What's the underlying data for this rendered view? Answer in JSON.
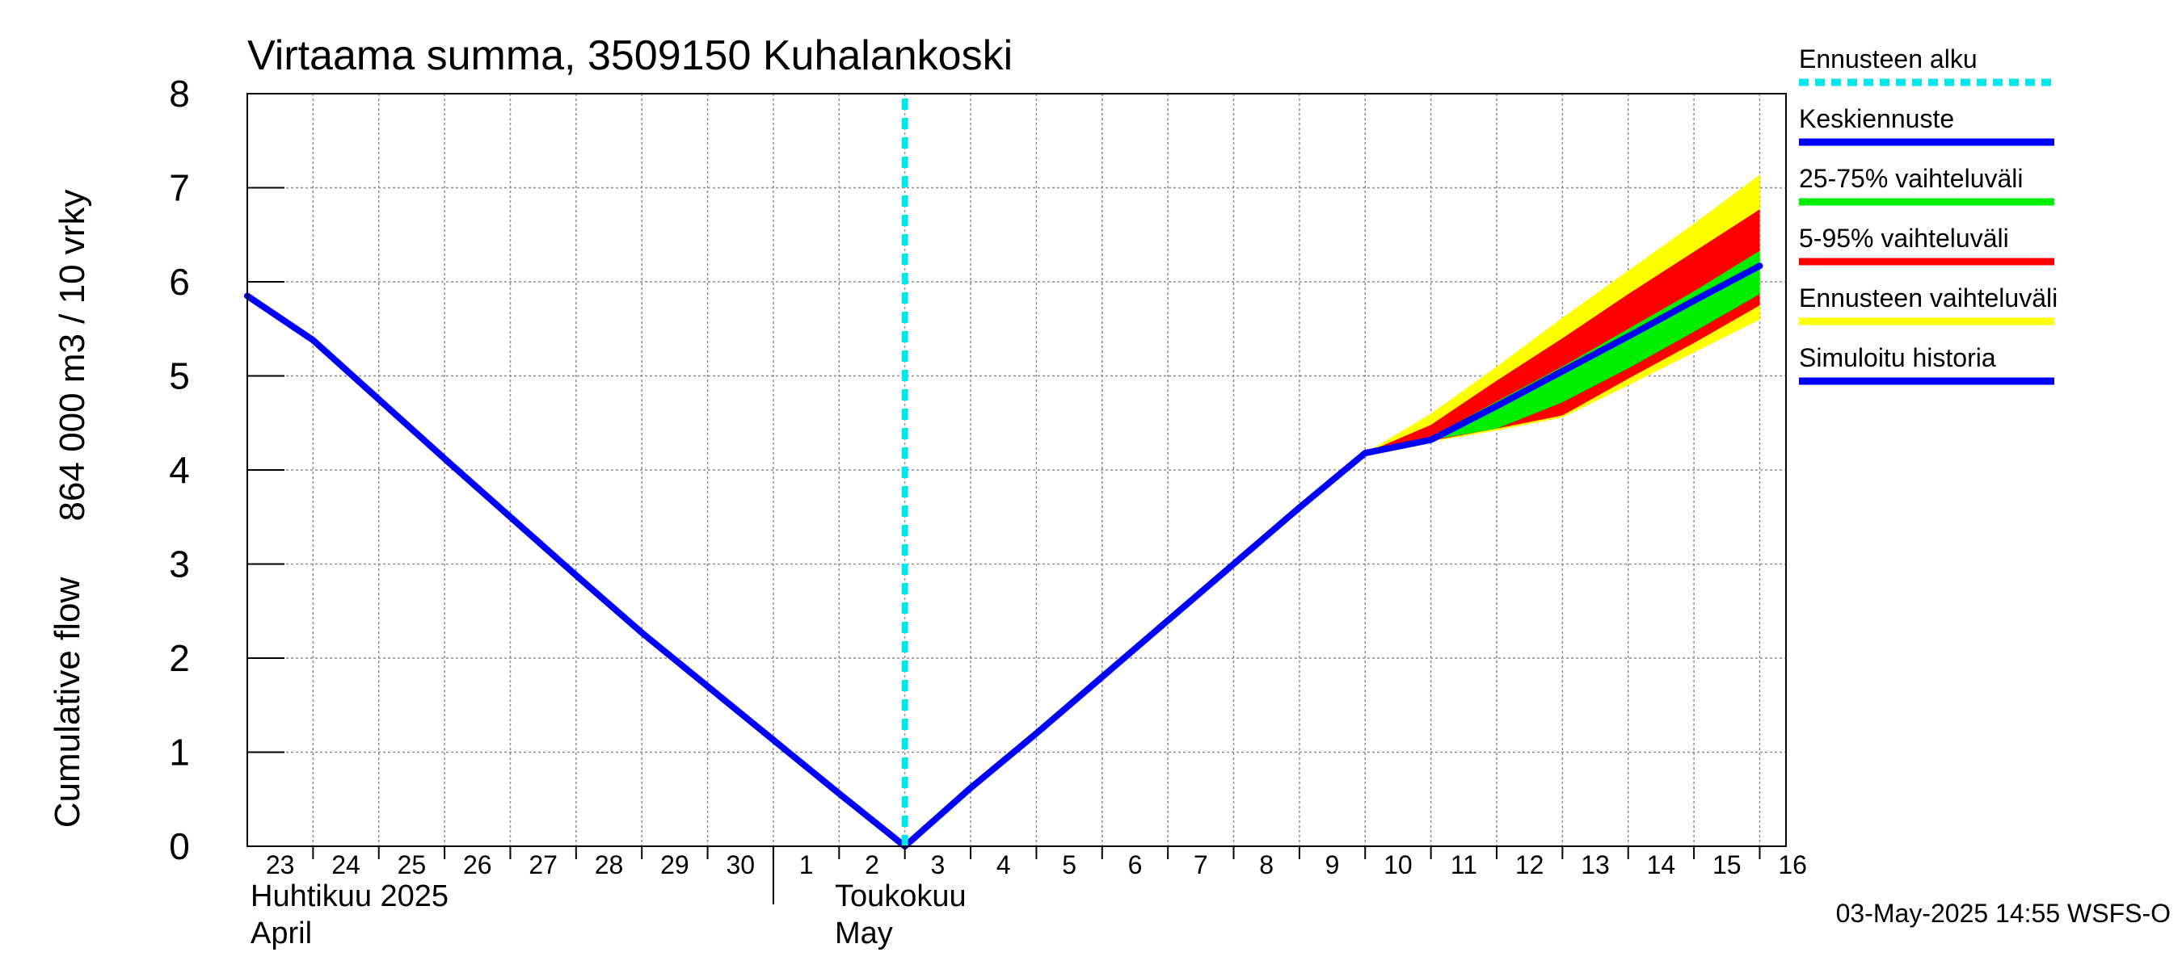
{
  "chart_data": {
    "type": "area",
    "title": "Virtaama summa, 3509150 Kuhalankoski",
    "ylabel_top": "864 000 m3 / 10 vrky",
    "ylabel_bottom": "Cumulative flow",
    "ylim": [
      0,
      8
    ],
    "yticks": [
      "0",
      "1",
      "2",
      "3",
      "4",
      "5",
      "6",
      "7",
      "8"
    ],
    "grid": true,
    "x_start": "2025-04-23",
    "x_end": "2025-05-16",
    "xticks": [
      "23",
      "24",
      "25",
      "26",
      "27",
      "28",
      "29",
      "30",
      "1",
      "2",
      "3",
      "4",
      "5",
      "6",
      "7",
      "8",
      "9",
      "10",
      "11",
      "12",
      "13",
      "14",
      "15",
      "16"
    ],
    "month_labels": [
      {
        "fi": "Huhtikuu  2025",
        "en": "April"
      },
      {
        "fi": "Toukokuu",
        "en": "May"
      }
    ],
    "forecast_start": "2025-05-03",
    "series": [
      {
        "name": "Simuloitu historia",
        "color": "#0000ff",
        "x": [
          "2025-04-23",
          "2025-04-24",
          "2025-04-25",
          "2025-04-26",
          "2025-04-27",
          "2025-04-28",
          "2025-04-29",
          "2025-04-30",
          "2025-05-01",
          "2025-05-02",
          "2025-05-03"
        ],
        "y": [
          5.85,
          5.38,
          4.75,
          4.12,
          3.5,
          2.88,
          2.27,
          1.7,
          1.13,
          0.56,
          0.0
        ]
      },
      {
        "name": "Keskiennuste",
        "color": "#0000ff",
        "x": [
          "2025-05-03",
          "2025-05-04",
          "2025-05-05",
          "2025-05-06",
          "2025-05-07",
          "2025-05-08",
          "2025-05-09",
          "2025-05-10",
          "2025-05-11",
          "2025-05-12",
          "2025-05-13",
          "2025-05-14",
          "2025-05-15",
          "2025-05-16"
        ],
        "y": [
          0.0,
          0.62,
          1.2,
          1.8,
          2.4,
          3.0,
          3.6,
          4.18,
          4.32,
          4.68,
          5.05,
          5.42,
          5.8,
          6.17
        ]
      }
    ],
    "bands": [
      {
        "name": "Ennusteen vaihteluväli",
        "color": "#ffff00",
        "x": [
          "2025-05-10",
          "2025-05-11",
          "2025-05-12",
          "2025-05-13",
          "2025-05-14",
          "2025-05-15",
          "2025-05-16"
        ],
        "lower": [
          4.18,
          4.3,
          4.42,
          4.56,
          4.9,
          5.25,
          5.6
        ],
        "upper": [
          4.18,
          4.6,
          5.1,
          5.62,
          6.12,
          6.62,
          7.14
        ]
      },
      {
        "name": "5-95% vaihteluväli",
        "color": "#ff0000",
        "x": [
          "2025-05-10",
          "2025-05-11",
          "2025-05-12",
          "2025-05-13",
          "2025-05-14",
          "2025-05-15",
          "2025-05-16"
        ],
        "lower": [
          4.18,
          4.31,
          4.44,
          4.58,
          4.97,
          5.35,
          5.75
        ],
        "upper": [
          4.18,
          4.48,
          4.95,
          5.4,
          5.87,
          6.32,
          6.77
        ]
      },
      {
        "name": "25-75% vaihteluväli",
        "color": "#00ee00",
        "x": [
          "2025-05-10",
          "2025-05-11",
          "2025-05-12",
          "2025-05-13",
          "2025-05-14",
          "2025-05-15",
          "2025-05-16"
        ],
        "lower": [
          4.18,
          4.32,
          4.44,
          4.72,
          5.08,
          5.47,
          5.87
        ],
        "upper": [
          4.18,
          4.35,
          4.73,
          5.1,
          5.5,
          5.9,
          6.33
        ]
      }
    ],
    "legend": {
      "placement": "right",
      "items": [
        {
          "label": "Ennusteen alku",
          "color": "#00e5ee",
          "style": "dashed"
        },
        {
          "label": "Keskiennuste",
          "color": "#0000ff",
          "style": "solid"
        },
        {
          "label": "25-75% vaihteluväli",
          "color": "#00ee00",
          "style": "solid"
        },
        {
          "label": "5-95% vaihteluväli",
          "color": "#ff0000",
          "style": "solid"
        },
        {
          "label": "Ennusteen vaihteluväli",
          "color": "#ffff00",
          "style": "solid"
        },
        {
          "label": "Simuloitu historia",
          "color": "#0000ff",
          "style": "solid"
        }
      ]
    }
  },
  "footer": {
    "timestamp": "03-May-2025 14:55 WSFS-O"
  }
}
